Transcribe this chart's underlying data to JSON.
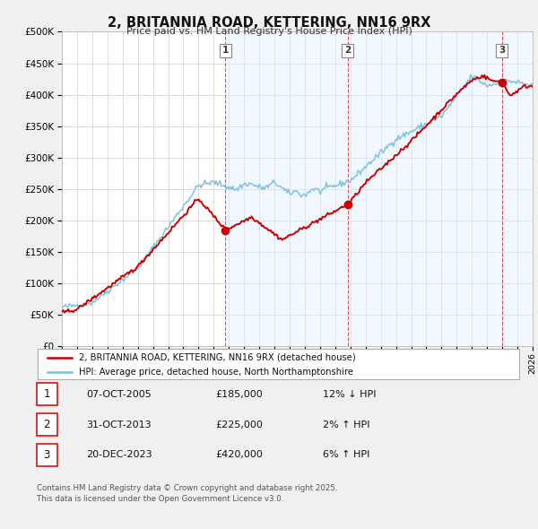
{
  "title": "2, BRITANNIA ROAD, KETTERING, NN16 9RX",
  "subtitle": "Price paid vs. HM Land Registry's House Price Index (HPI)",
  "legend_line1": "2, BRITANNIA ROAD, KETTERING, NN16 9RX (detached house)",
  "legend_line2": "HPI: Average price, detached house, North Northamptonshire",
  "sale1_date": "07-OCT-2005",
  "sale1_price": "£185,000",
  "sale1_hpi": "12% ↓ HPI",
  "sale2_date": "31-OCT-2013",
  "sale2_price": "£225,000",
  "sale2_hpi": "2% ↑ HPI",
  "sale3_date": "20-DEC-2023",
  "sale3_price": "£420,000",
  "sale3_hpi": "6% ↑ HPI",
  "footer": "Contains HM Land Registry data © Crown copyright and database right 2025.\nThis data is licensed under the Open Government Licence v3.0.",
  "red_color": "#cc0000",
  "blue_color": "#7bbfdd",
  "background_color": "#f0f0f0",
  "plot_bg_color": "#ffffff",
  "grid_color": "#cccccc",
  "shade_color": "#ddeeff",
  "ylim": [
    0,
    500000
  ],
  "yticks": [
    0,
    50000,
    100000,
    150000,
    200000,
    250000,
    300000,
    350000,
    400000,
    450000,
    500000
  ],
  "sale1_x": 2005.77,
  "sale2_x": 2013.83,
  "sale3_x": 2023.97,
  "sale1_price_val": 185000,
  "sale2_price_val": 225000,
  "sale3_price_val": 420000
}
